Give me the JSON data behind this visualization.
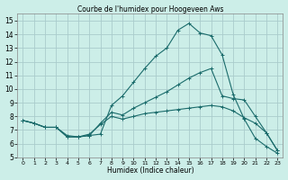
{
  "title": "Courbe de l'humidex pour Hoogeveen Aws",
  "xlabel": "Humidex (Indice chaleur)",
  "bg_color": "#cceee8",
  "grid_color": "#aacccc",
  "line_color": "#1a6b6b",
  "xlim": [
    -0.5,
    23.5
  ],
  "ylim": [
    5,
    15.5
  ],
  "xticks": [
    0,
    1,
    2,
    3,
    4,
    5,
    6,
    7,
    8,
    9,
    10,
    11,
    12,
    13,
    14,
    15,
    16,
    17,
    18,
    19,
    20,
    21,
    22,
    23
  ],
  "yticks": [
    5,
    6,
    7,
    8,
    9,
    10,
    11,
    12,
    13,
    14,
    15
  ],
  "lines": [
    {
      "x": [
        0,
        1,
        2,
        3,
        4,
        5,
        6,
        7,
        8,
        9,
        10,
        11,
        12,
        13,
        14,
        15,
        16,
        17,
        18,
        19,
        20,
        21,
        22,
        23
      ],
      "y": [
        7.7,
        7.5,
        7.2,
        7.2,
        6.5,
        6.5,
        6.6,
        6.7,
        8.8,
        9.5,
        10.5,
        11.5,
        12.4,
        13.0,
        14.3,
        14.8,
        14.1,
        13.9,
        12.5,
        9.6,
        7.8,
        6.4,
        5.8,
        5.3
      ]
    },
    {
      "x": [
        0,
        1,
        2,
        3,
        4,
        5,
        6,
        7,
        8,
        9,
        10,
        11,
        12,
        13,
        14,
        15,
        16,
        17,
        18,
        19,
        20,
        21,
        22,
        23
      ],
      "y": [
        7.7,
        7.5,
        7.2,
        7.2,
        6.5,
        6.5,
        6.6,
        7.5,
        8.3,
        8.1,
        8.6,
        9.0,
        9.4,
        9.8,
        10.3,
        10.8,
        11.2,
        11.5,
        9.5,
        9.3,
        9.2,
        8.0,
        6.8,
        5.5
      ]
    },
    {
      "x": [
        0,
        1,
        2,
        3,
        4,
        5,
        6,
        7,
        8,
        9,
        10,
        11,
        12,
        13,
        14,
        15,
        16,
        17,
        18,
        19,
        20,
        21,
        22,
        23
      ],
      "y": [
        7.7,
        7.5,
        7.2,
        7.2,
        6.6,
        6.5,
        6.7,
        7.4,
        8.0,
        7.8,
        8.0,
        8.2,
        8.3,
        8.4,
        8.5,
        8.6,
        8.7,
        8.8,
        8.7,
        8.4,
        7.9,
        7.5,
        6.8,
        5.5
      ]
    }
  ]
}
